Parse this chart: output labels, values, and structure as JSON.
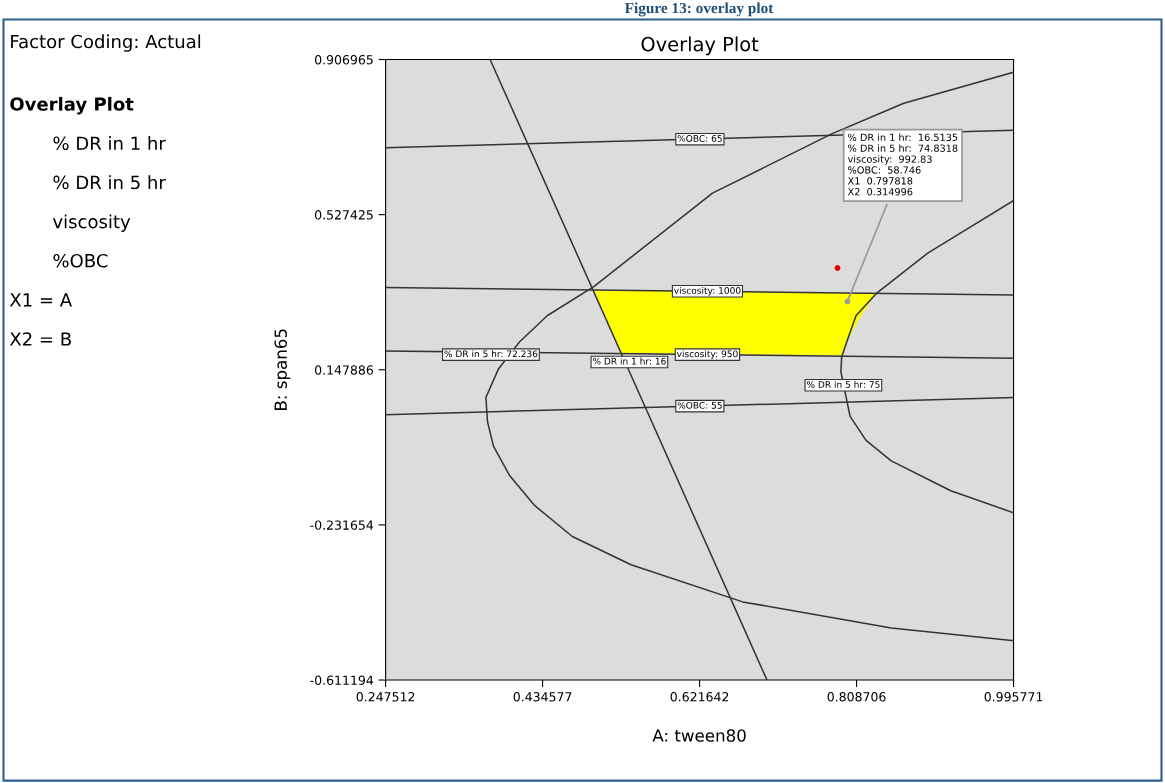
{
  "chart_data": {
    "type": "line",
    "title": "Overlay Plot",
    "xlabel": "A: tween80",
    "ylabel": "B: span65",
    "xlim": [
      0.247512,
      0.995771
    ],
    "xticks": [
      0.247512,
      0.434577,
      0.621642,
      0.808706,
      0.995771
    ],
    "ylim": [
      -0.611194,
      0.906965
    ],
    "yticks": [
      0.906965,
      0.527425,
      0.147886,
      -0.231654,
      -0.611194
    ],
    "grid": false,
    "legend": false,
    "marker": "none",
    "line_style": "solid",
    "series": [
      {
        "type": "area",
        "color": "#ffff00",
        "x": [
          0.496,
          0.528,
          0.792,
          0.797,
          0.814,
          0.832
        ],
        "values": [
          0.343,
          0.189,
          0.183,
          0.216,
          0.28,
          0.334
        ]
      },
      {
        "color": "#333333",
        "x": [
          0.247512,
          0.995771
        ],
        "values": [
          0.691,
          0.734
        ]
      },
      {
        "color": "#333333",
        "x": [
          0.247512,
          0.995771
        ],
        "values": [
          0.038,
          0.08
        ]
      },
      {
        "color": "#333333",
        "x": [
          0.247512,
          0.995771
        ],
        "values": [
          0.349,
          0.331
        ]
      },
      {
        "color": "#333333",
        "x": [
          0.247512,
          0.995771
        ],
        "values": [
          0.194,
          0.176
        ]
      },
      {
        "color": "#333333",
        "x": [
          0.372,
          0.537,
          0.702
        ],
        "values": [
          0.906965,
          0.148,
          -0.611194
        ]
      },
      {
        "color": "#333333",
        "x": [
          0.995771,
          0.865,
          0.779,
          0.637,
          0.496,
          0.44,
          0.407,
          0.382,
          0.367,
          0.369,
          0.376,
          0.395,
          0.425,
          0.47,
          0.54,
          0.673,
          0.85,
          0.995771
        ],
        "values": [
          0.876,
          0.8,
          0.725,
          0.58,
          0.352,
          0.28,
          0.216,
          0.15,
          0.08,
          0.02,
          -0.039,
          -0.11,
          -0.184,
          -0.26,
          -0.329,
          -0.42,
          -0.484,
          -0.515
        ]
      },
      {
        "color": "#333333",
        "x": [
          0.995771,
          0.894,
          0.832,
          0.808,
          0.797,
          0.791,
          0.79,
          0.801,
          0.82,
          0.85,
          0.921,
          0.995771
        ],
        "values": [
          0.562,
          0.434,
          0.334,
          0.28,
          0.216,
          0.18,
          0.143,
          0.034,
          -0.025,
          -0.075,
          -0.148,
          -0.202
        ]
      },
      {
        "type": "scatter",
        "color": "#e00000",
        "marker": "circle",
        "x": [
          0.786
        ],
        "values": [
          0.397
        ]
      },
      {
        "type": "scatter",
        "color": "#999999",
        "marker": "circle",
        "x": [
          0.797818
        ],
        "values": [
          0.314996
        ]
      }
    ],
    "annotations": [
      "Factor Coding: Actual",
      "Overlay Plot",
      "% DR in 1 hr",
      "% DR in 5 hr",
      "viscosity",
      "%OBC",
      "X1 = A",
      "X2 = B",
      "Figure 13: overlay plot",
      {
        "text": "%OBC: 65",
        "x": 0.622,
        "y": 0.712
      },
      {
        "text": "viscosity: 1000",
        "x": 0.631,
        "y": 0.34
      },
      {
        "text": "viscosity: 950",
        "x": 0.631,
        "y": 0.185
      },
      {
        "text": "% DR in 5 hr: 72.236",
        "x": 0.373,
        "y": 0.185
      },
      {
        "text": "% DR in 1 hr: 16",
        "x": 0.538,
        "y": 0.167
      },
      {
        "text": "% DR in 5 hr: 75",
        "x": 0.793,
        "y": 0.11
      },
      {
        "text": "%OBC: 55",
        "x": 0.622,
        "y": 0.059
      },
      {
        "text": "% DR in 1 hr:  16.5135\n% DR in 5 hr:  74.8318\nviscosity:  992.83\n%OBC:  58.746\nX1  0.797818\nX2  0.314996",
        "x": 0.797818,
        "y": 0.314996
      }
    ]
  }
}
